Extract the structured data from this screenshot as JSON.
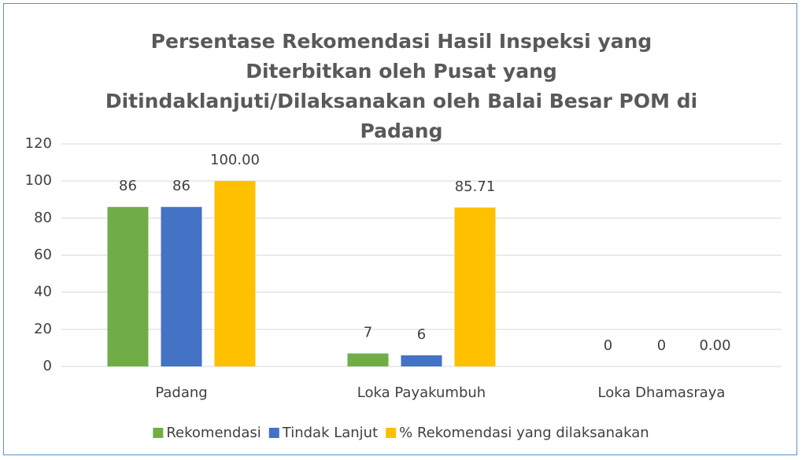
{
  "chart_data": {
    "type": "bar",
    "title": "Persentase Rekomendasi Hasil Inspeksi yang Diterbitkan oleh Pusat yang Ditindaklanjuti/Dilaksanakan oleh Balai Besar POM di Padang",
    "categories": [
      "Padang",
      "Loka Payakumbuh",
      "Loka Dhamasraya"
    ],
    "series": [
      {
        "name": "Rekomendasi",
        "color": "#70ad47",
        "values": [
          86,
          7,
          0
        ]
      },
      {
        "name": "Tindak Lanjut",
        "color": "#4472c4",
        "values": [
          86,
          6,
          0
        ]
      },
      {
        "name": "% Rekomendasi yang dilaksanakan",
        "color": "#ffc000",
        "values": [
          100,
          85.71,
          0
        ],
        "value_labels": [
          "100.00",
          "85.71",
          "0.00"
        ]
      }
    ],
    "ylim": [
      0,
      120
    ],
    "yticks": [
      0,
      20,
      40,
      60,
      80,
      100,
      120
    ],
    "grid": true,
    "legend": "bottom"
  }
}
